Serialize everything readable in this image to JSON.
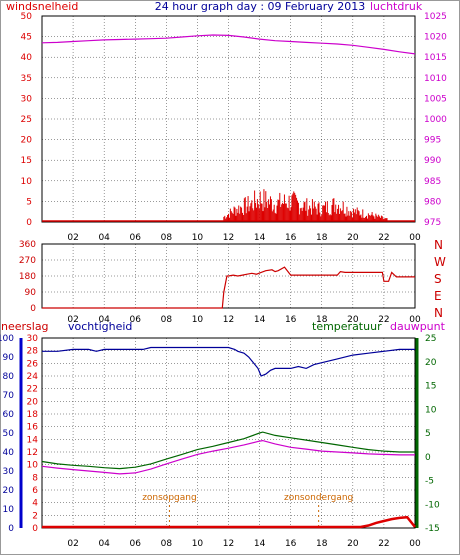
{
  "colors": {
    "wind": "#dd0000",
    "pressure": "#cc00cc",
    "direction": "#cc0000",
    "humidity": "#000099",
    "temperature": "#006600",
    "dewpoint": "#cc00cc",
    "rain": "#dd0000",
    "sun": "#cc6600",
    "grid": "#000000",
    "panel_bg": "#ffffff"
  },
  "chart_data": [
    {
      "type": "line",
      "title": "24 hour graph day : 09 February 2013",
      "ylabel_left": "windsnelheid",
      "ylabel_right": "luchtdruk",
      "x_ticks": [
        "02",
        "04",
        "06",
        "08",
        "10",
        "12",
        "14",
        "16",
        "18",
        "20",
        "22",
        "00"
      ],
      "y_left_ticks": [
        "0",
        "5",
        "10",
        "15",
        "20",
        "25",
        "30",
        "35",
        "40",
        "45",
        "50"
      ],
      "y_right_ticks": [
        "975",
        "980",
        "985",
        "990",
        "995",
        "1000",
        "1005",
        "1010",
        "1015",
        "1020",
        "1025"
      ],
      "ylim_left": [
        0,
        50
      ],
      "ylim_right": [
        975,
        1025
      ],
      "series": [
        {
          "name": "luchtdruk",
          "axis": "right",
          "x": [
            0,
            1,
            2,
            3,
            4,
            5,
            6,
            7,
            8,
            9,
            10,
            11,
            12,
            13,
            14,
            15,
            16,
            17,
            18,
            19,
            20,
            21,
            22,
            23,
            24
          ],
          "y": [
            1018.5,
            1018.6,
            1018.8,
            1019.0,
            1019.2,
            1019.3,
            1019.4,
            1019.5,
            1019.6,
            1019.9,
            1020.2,
            1020.4,
            1020.3,
            1019.9,
            1019.4,
            1019.0,
            1018.8,
            1018.6,
            1018.4,
            1018.2,
            1017.9,
            1017.4,
            1016.9,
            1016.3,
            1015.8
          ]
        },
        {
          "name": "windsnelheid",
          "axis": "left",
          "type": "spikes",
          "x_from": 11.7,
          "x_to": 22.2,
          "step": 0.06,
          "max_envelope": [
            [
              11.7,
              2
            ],
            [
              12.5,
              5
            ],
            [
              13.5,
              7
            ],
            [
              14.0,
              9
            ],
            [
              15.0,
              7
            ],
            [
              16.0,
              8
            ],
            [
              17.0,
              6
            ],
            [
              18.0,
              5
            ],
            [
              19.0,
              7
            ],
            [
              20.0,
              4
            ],
            [
              21.0,
              3
            ],
            [
              22.2,
              1
            ]
          ]
        }
      ]
    },
    {
      "type": "line",
      "ylabel_right_letters": [
        "N",
        "W",
        "S",
        "E",
        "N"
      ],
      "y_left_ticks": [
        "0",
        "90",
        "180",
        "270",
        "360"
      ],
      "ylim": [
        0,
        360
      ],
      "series": [
        {
          "name": "windrichting",
          "x": [
            0,
            11.6,
            11.7,
            11.9,
            12.0,
            12.3,
            12.6,
            12.9,
            13.2,
            13.5,
            13.8,
            14.1,
            14.4,
            14.8,
            15.0,
            15.2,
            15.6,
            16.0,
            17.0,
            18.0,
            18.5,
            19.0,
            19.2,
            19.5,
            20.5,
            21.0,
            21.5,
            21.7,
            21.9,
            22.0,
            22.3,
            22.5,
            22.8,
            23.2,
            24
          ],
          "y": [
            0,
            0,
            90,
            180,
            180,
            185,
            180,
            185,
            190,
            195,
            190,
            200,
            210,
            215,
            205,
            210,
            230,
            185,
            185,
            185,
            185,
            185,
            205,
            200,
            200,
            200,
            200,
            200,
            200,
            150,
            150,
            200,
            175,
            175,
            175
          ]
        }
      ]
    },
    {
      "type": "line",
      "ylabel_humidity": "vochtigheid",
      "ylabel_rain": "neerslag",
      "ylabel_temperature": "temperatuur",
      "ylabel_dewpoint": "dauwpunt",
      "humidity_ticks": [
        "0",
        "10",
        "20",
        "30",
        "40",
        "50",
        "60",
        "70",
        "80",
        "90",
        "100"
      ],
      "rain_ticks": [
        "0",
        "2",
        "4",
        "6",
        "8",
        "10",
        "12",
        "14",
        "16",
        "18",
        "20",
        "22",
        "24",
        "26",
        "28",
        "30"
      ],
      "temp_ticks": [
        "-15",
        "-10",
        "-5",
        "0",
        "5",
        "10",
        "15",
        "20",
        "25"
      ],
      "ylim_humidity": [
        0,
        100
      ],
      "ylim_temperature": [
        -15,
        25
      ],
      "sunrise_label": "zonsopgang",
      "sunset_label": "zonsondergang",
      "sunrise_hour": 8.2,
      "sunset_hour": 17.8,
      "series": [
        {
          "name": "vochtigheid",
          "axis": "humidity",
          "x": [
            0,
            1,
            2,
            3,
            3.5,
            4,
            5,
            6,
            6.5,
            7,
            8,
            9,
            10,
            11,
            11.5,
            12,
            12.4,
            12.6,
            13.0,
            13.3,
            13.6,
            13.9,
            14.1,
            14.4,
            14.7,
            15.0,
            15.3,
            15.6,
            16,
            16.5,
            17,
            17.5,
            18,
            18.5,
            19,
            20,
            21,
            22,
            23,
            24
          ],
          "y": [
            93,
            93,
            94,
            94,
            93,
            94,
            94,
            94,
            94,
            95,
            95,
            95,
            95,
            95,
            95,
            95,
            94,
            93,
            92,
            90,
            87,
            84,
            80,
            81,
            83,
            84,
            84,
            84,
            84,
            85,
            84,
            86,
            87,
            88,
            89,
            91,
            92,
            93,
            94,
            94
          ]
        },
        {
          "name": "temperatuur",
          "axis": "temperature",
          "x": [
            0,
            1,
            2,
            3,
            4,
            5,
            6,
            7,
            8,
            9,
            10,
            11,
            12,
            13,
            14,
            14.2,
            15,
            16,
            17,
            18,
            19,
            20,
            21,
            22,
            23,
            24
          ],
          "y": [
            -1.0,
            -1.5,
            -1.8,
            -2.0,
            -2.3,
            -2.5,
            -2.2,
            -1.5,
            -0.5,
            0.5,
            1.5,
            2.2,
            3.0,
            3.8,
            5.0,
            5.2,
            4.5,
            4.0,
            3.5,
            3.0,
            2.5,
            2.0,
            1.5,
            1.2,
            1.0,
            1.0
          ]
        },
        {
          "name": "dauwpunt",
          "axis": "temperature",
          "x": [
            0,
            1,
            2,
            3,
            4,
            5,
            6,
            7,
            8,
            9,
            10,
            11,
            12,
            13,
            14,
            14.2,
            15,
            16,
            17,
            18,
            19,
            20,
            21,
            22,
            23,
            24
          ],
          "y": [
            -2.0,
            -2.4,
            -2.7,
            -3.0,
            -3.3,
            -3.6,
            -3.4,
            -2.6,
            -1.5,
            -0.5,
            0.5,
            1.2,
            1.8,
            2.5,
            3.3,
            3.4,
            2.7,
            2.0,
            1.6,
            1.2,
            1.0,
            0.8,
            0.6,
            0.5,
            0.4,
            0.4
          ]
        },
        {
          "name": "neerslag",
          "axis": "rain",
          "x": [
            0,
            20.0,
            20.5,
            21.0,
            21.5,
            22.0,
            22.5,
            23.0,
            23.5,
            24
          ],
          "y": [
            0,
            0,
            0.1,
            0.4,
            0.8,
            1.1,
            1.4,
            1.6,
            1.7,
            0.1
          ]
        }
      ]
    }
  ]
}
